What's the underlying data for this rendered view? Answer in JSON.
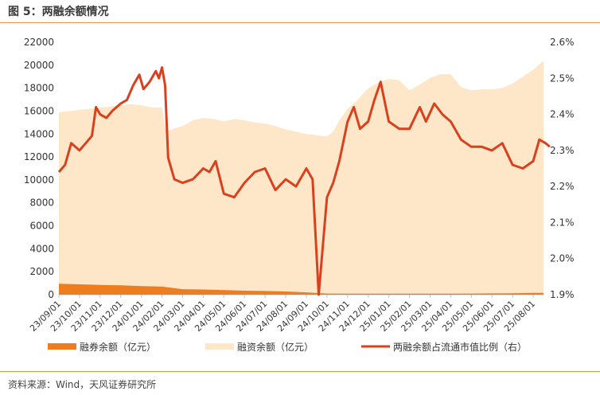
{
  "header": {
    "title": "图 5：两融余额情况"
  },
  "footer": {
    "source": "资料来源：Wind，天风证券研究所"
  },
  "colors": {
    "margin_balance": "#fde7c8",
    "short_balance": "#ed7d1f",
    "ratio_line": "#d9411e",
    "rule": "#e8914a"
  },
  "chart_data": {
    "type": "area",
    "title": "",
    "xlabel": "",
    "ylabel": "",
    "ylim": [
      0,
      22000
    ],
    "y2lim": [
      1.9,
      2.6
    ],
    "y_ticks": [
      "0",
      "2000",
      "4000",
      "6000",
      "8000",
      "10000",
      "12000",
      "14000",
      "16000",
      "18000",
      "20000",
      "22000"
    ],
    "y2_ticks": [
      "1.9%",
      "2.0%",
      "2.1%",
      "2.2%",
      "2.3%",
      "2.4%",
      "2.5%",
      "2.6%"
    ],
    "x_labels": [
      "23/09/01",
      "23/10/01",
      "23/11/01",
      "23/12/01",
      "24/01/01",
      "24/02/01",
      "24/03/01",
      "24/04/01",
      "24/05/01",
      "24/06/01",
      "24/07/01",
      "24/08/01",
      "24/09/01",
      "24/10/01",
      "24/11/01",
      "24/12/01",
      "25/01/01",
      "25/02/01",
      "25/03/01",
      "25/04/01",
      "25/05/01",
      "25/06/01",
      "25/07/01",
      "25/08/01"
    ],
    "x_months": [
      0,
      1,
      2,
      3,
      4,
      5,
      6,
      7,
      8,
      9,
      10,
      11,
      12,
      13,
      14,
      15,
      16,
      17,
      18,
      19,
      20,
      21,
      22,
      23
    ],
    "legend_position": "bottom",
    "series": [
      {
        "name": "融资余额（亿元）",
        "kind": "area",
        "axis": "left",
        "points": [
          [
            0,
            15900
          ],
          [
            0.5,
            16000
          ],
          [
            1,
            16100
          ],
          [
            1.5,
            16200
          ],
          [
            2,
            16300
          ],
          [
            2.5,
            16400
          ],
          [
            3,
            16500
          ],
          [
            3.5,
            16600
          ],
          [
            4,
            16500
          ],
          [
            4.5,
            16300
          ],
          [
            5,
            16300
          ],
          [
            5.2,
            14200
          ],
          [
            5.6,
            14500
          ],
          [
            6,
            14700
          ],
          [
            6.5,
            15200
          ],
          [
            7,
            15400
          ],
          [
            7.5,
            15300
          ],
          [
            8,
            15100
          ],
          [
            8.5,
            15300
          ],
          [
            9,
            15200
          ],
          [
            9.5,
            15000
          ],
          [
            10,
            14900
          ],
          [
            10.5,
            14700
          ],
          [
            11,
            14400
          ],
          [
            11.5,
            14200
          ],
          [
            12,
            14000
          ],
          [
            12.5,
            13900
          ],
          [
            13,
            13800
          ],
          [
            13.3,
            14200
          ],
          [
            13.6,
            15200
          ],
          [
            14,
            16200
          ],
          [
            14.5,
            17000
          ],
          [
            15,
            18000
          ],
          [
            15.5,
            18500
          ],
          [
            16,
            18800
          ],
          [
            16.5,
            18700
          ],
          [
            17,
            17800
          ],
          [
            17.5,
            18300
          ],
          [
            18,
            18900
          ],
          [
            18.5,
            19200
          ],
          [
            19,
            19200
          ],
          [
            19.5,
            18100
          ],
          [
            20,
            17800
          ],
          [
            20.5,
            17900
          ],
          [
            21,
            17900
          ],
          [
            21.5,
            18000
          ],
          [
            22,
            18400
          ],
          [
            22.5,
            19000
          ],
          [
            23,
            19600
          ],
          [
            23.5,
            20400
          ]
        ]
      },
      {
        "name": "融券余额（亿元）",
        "kind": "area",
        "axis": "left",
        "points": [
          [
            0,
            950
          ],
          [
            1,
            900
          ],
          [
            2,
            850
          ],
          [
            3,
            820
          ],
          [
            4,
            750
          ],
          [
            5,
            700
          ],
          [
            6,
            480
          ],
          [
            7,
            450
          ],
          [
            8,
            400
          ],
          [
            9,
            350
          ],
          [
            10,
            320
          ],
          [
            11,
            280
          ],
          [
            12,
            200
          ],
          [
            13,
            100
          ],
          [
            14,
            80
          ],
          [
            15,
            80
          ],
          [
            16,
            80
          ],
          [
            17,
            90
          ],
          [
            18,
            90
          ],
          [
            19,
            90
          ],
          [
            20,
            100
          ],
          [
            21,
            110
          ],
          [
            22,
            120
          ],
          [
            23,
            150
          ],
          [
            23.5,
            160
          ]
        ]
      },
      {
        "name": "两融余额占流通市值比例（右）",
        "kind": "line",
        "axis": "right",
        "points": [
          [
            0,
            2.24
          ],
          [
            0.3,
            2.26
          ],
          [
            0.6,
            2.32
          ],
          [
            1,
            2.3
          ],
          [
            1.3,
            2.32
          ],
          [
            1.6,
            2.34
          ],
          [
            1.8,
            2.42
          ],
          [
            2,
            2.4
          ],
          [
            2.3,
            2.39
          ],
          [
            2.6,
            2.41
          ],
          [
            3,
            2.43
          ],
          [
            3.3,
            2.44
          ],
          [
            3.6,
            2.48
          ],
          [
            3.9,
            2.51
          ],
          [
            4.1,
            2.47
          ],
          [
            4.4,
            2.49
          ],
          [
            4.7,
            2.52
          ],
          [
            4.85,
            2.5
          ],
          [
            5.0,
            2.53
          ],
          [
            5.15,
            2.48
          ],
          [
            5.3,
            2.28
          ],
          [
            5.6,
            2.22
          ],
          [
            6,
            2.21
          ],
          [
            6.5,
            2.22
          ],
          [
            7,
            2.25
          ],
          [
            7.3,
            2.24
          ],
          [
            7.6,
            2.27
          ],
          [
            8,
            2.18
          ],
          [
            8.5,
            2.17
          ],
          [
            9,
            2.21
          ],
          [
            9.5,
            2.24
          ],
          [
            10,
            2.25
          ],
          [
            10.5,
            2.19
          ],
          [
            11,
            2.22
          ],
          [
            11.5,
            2.2
          ],
          [
            12,
            2.25
          ],
          [
            12.3,
            2.22
          ],
          [
            12.6,
            1.9
          ],
          [
            13,
            2.17
          ],
          [
            13.3,
            2.21
          ],
          [
            13.6,
            2.27
          ],
          [
            14,
            2.38
          ],
          [
            14.3,
            2.42
          ],
          [
            14.6,
            2.36
          ],
          [
            15,
            2.38
          ],
          [
            15.3,
            2.44
          ],
          [
            15.6,
            2.49
          ],
          [
            16,
            2.38
          ],
          [
            16.5,
            2.36
          ],
          [
            17,
            2.36
          ],
          [
            17.5,
            2.42
          ],
          [
            17.8,
            2.38
          ],
          [
            18.2,
            2.43
          ],
          [
            18.6,
            2.4
          ],
          [
            19,
            2.38
          ],
          [
            19.5,
            2.33
          ],
          [
            20,
            2.31
          ],
          [
            20.5,
            2.31
          ],
          [
            21,
            2.3
          ],
          [
            21.5,
            2.32
          ],
          [
            22,
            2.26
          ],
          [
            22.5,
            2.25
          ],
          [
            23,
            2.27
          ],
          [
            23.3,
            2.33
          ],
          [
            23.6,
            2.32
          ],
          [
            23.8,
            2.31
          ]
        ]
      }
    ]
  }
}
